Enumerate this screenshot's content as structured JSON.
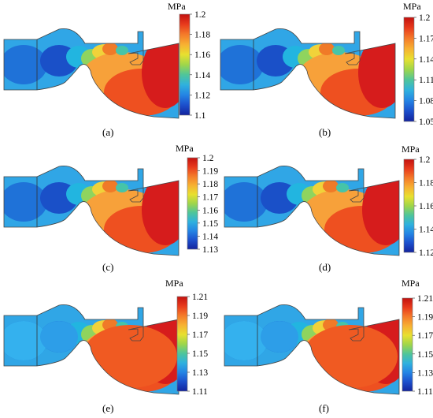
{
  "unit_label": "MPa",
  "panels": [
    {
      "id": "a",
      "caption": "(a)",
      "scale": [
        "1.2",
        "1.18",
        "1.16",
        "1.14",
        "1.12",
        "1.1"
      ],
      "variant": "a"
    },
    {
      "id": "b",
      "caption": "(b)",
      "scale": [
        "1.2",
        "1.17",
        "1.14",
        "1.11",
        "1.08",
        "1.05"
      ],
      "variant": "b"
    },
    {
      "id": "c",
      "caption": "(c)",
      "scale": [
        "1.2",
        "1.19",
        "1.18",
        "1.17",
        "1.16",
        "1.15",
        "1.14",
        "1.13"
      ],
      "variant": "c"
    },
    {
      "id": "d",
      "caption": "(d)",
      "scale": [
        "1.2",
        "1.18",
        "1.16",
        "1.14",
        "1.12"
      ],
      "variant": "d"
    },
    {
      "id": "e",
      "caption": "(e)",
      "scale": [
        "1.21",
        "1.19",
        "1.17",
        "1.15",
        "1.13",
        "1.11"
      ],
      "variant": "e"
    },
    {
      "id": "f",
      "caption": "(f)",
      "scale": [
        "1.21",
        "1.19",
        "1.17",
        "1.15",
        "1.13",
        "1.11"
      ],
      "variant": "f"
    }
  ]
}
